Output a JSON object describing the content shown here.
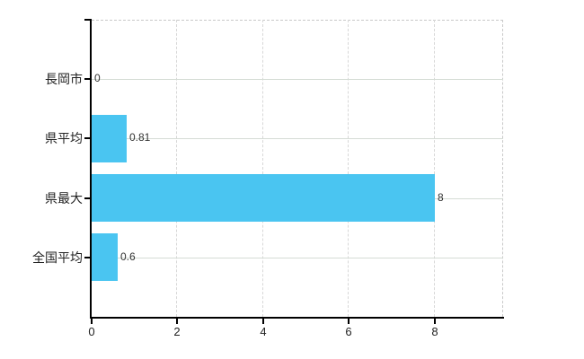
{
  "chart_data": {
    "type": "bar",
    "orientation": "horizontal",
    "title": "",
    "xlabel": "",
    "ylabel": "",
    "legend": "none",
    "grid": "on",
    "categories": [
      "長岡市",
      "県平均",
      "県最大",
      "全国平均"
    ],
    "values": [
      0,
      0.81,
      8,
      0.6
    ],
    "value_labels": [
      "0",
      "0.81",
      "8",
      "0.6"
    ],
    "x_ticks": [
      0,
      2,
      4,
      6,
      8
    ],
    "x_tick_labels": [
      "0",
      "2",
      "4",
      "6",
      "8"
    ],
    "xlim": [
      0,
      9.6
    ],
    "colors": {
      "bar": "#4ac5f1",
      "h_gridline": "#d5dcd5",
      "v_gridline": "#d8d8d8",
      "dashed_border": "#c9c9c9",
      "axis": "#000000",
      "category_text": "#222222",
      "value_text": "#333333",
      "background": "#ffffff"
    }
  }
}
